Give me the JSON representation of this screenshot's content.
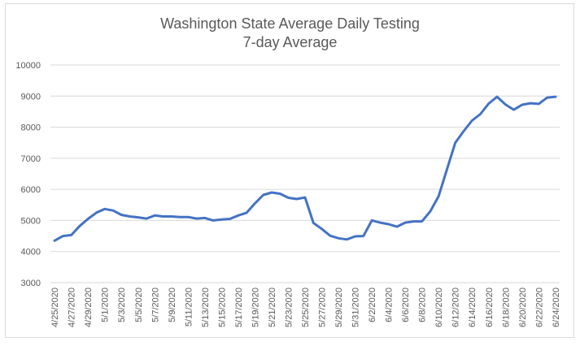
{
  "chart_data": {
    "type": "line",
    "title": "Washington State Average Daily Testing",
    "subtitle": "7-day Average",
    "xlabel": "",
    "ylabel": "",
    "ylim": [
      3000,
      10000
    ],
    "y_ticks": [
      3000,
      4000,
      5000,
      6000,
      7000,
      8000,
      9000,
      10000
    ],
    "grid": true,
    "legend": "none",
    "line_color": "#4472C4",
    "x_tick_labels": [
      "4/25/2020",
      "4/27/2020",
      "4/29/2020",
      "5/1/2020",
      "5/3/2020",
      "5/5/2020",
      "5/7/2020",
      "5/9/2020",
      "5/11/2020",
      "5/13/2020",
      "5/15/2020",
      "5/17/2020",
      "5/19/2020",
      "5/21/2020",
      "5/23/2020",
      "5/25/2020",
      "5/27/2020",
      "5/29/2020",
      "5/31/2020",
      "6/2/2020",
      "6/4/2020",
      "6/6/2020",
      "6/8/2020",
      "6/10/2020",
      "6/12/2020",
      "6/14/2020",
      "6/16/2020",
      "6/18/2020",
      "6/20/2020",
      "6/22/2020",
      "6/24/2020"
    ],
    "x": [
      "4/25/2020",
      "4/26/2020",
      "4/27/2020",
      "4/28/2020",
      "4/29/2020",
      "4/30/2020",
      "5/1/2020",
      "5/2/2020",
      "5/3/2020",
      "5/4/2020",
      "5/5/2020",
      "5/6/2020",
      "5/7/2020",
      "5/8/2020",
      "5/9/2020",
      "5/10/2020",
      "5/11/2020",
      "5/12/2020",
      "5/13/2020",
      "5/14/2020",
      "5/15/2020",
      "5/16/2020",
      "5/17/2020",
      "5/18/2020",
      "5/19/2020",
      "5/20/2020",
      "5/21/2020",
      "5/22/2020",
      "5/23/2020",
      "5/24/2020",
      "5/25/2020",
      "5/26/2020",
      "5/27/2020",
      "5/28/2020",
      "5/29/2020",
      "5/30/2020",
      "5/31/2020",
      "6/1/2020",
      "6/2/2020",
      "6/3/2020",
      "6/4/2020",
      "6/5/2020",
      "6/6/2020",
      "6/7/2020",
      "6/8/2020",
      "6/9/2020",
      "6/10/2020",
      "6/11/2020",
      "6/12/2020",
      "6/13/2020",
      "6/14/2020",
      "6/15/2020",
      "6/16/2020",
      "6/17/2020",
      "6/18/2020",
      "6/19/2020",
      "6/20/2020",
      "6/21/2020",
      "6/22/2020",
      "6/23/2020",
      "6/24/2020"
    ],
    "values": [
      4350,
      4500,
      4530,
      4820,
      5050,
      5250,
      5370,
      5320,
      5180,
      5130,
      5100,
      5060,
      5160,
      5130,
      5130,
      5110,
      5110,
      5060,
      5080,
      5000,
      5030,
      5050,
      5160,
      5250,
      5550,
      5820,
      5900,
      5860,
      5730,
      5690,
      5740,
      4920,
      4730,
      4510,
      4430,
      4390,
      4490,
      4500,
      5000,
      4930,
      4880,
      4800,
      4930,
      4970,
      4970,
      5290,
      5780,
      6650,
      7500,
      7870,
      8210,
      8420,
      8760,
      8980,
      8730,
      8560,
      8720,
      8770,
      8750,
      8950,
      8980
    ]
  }
}
